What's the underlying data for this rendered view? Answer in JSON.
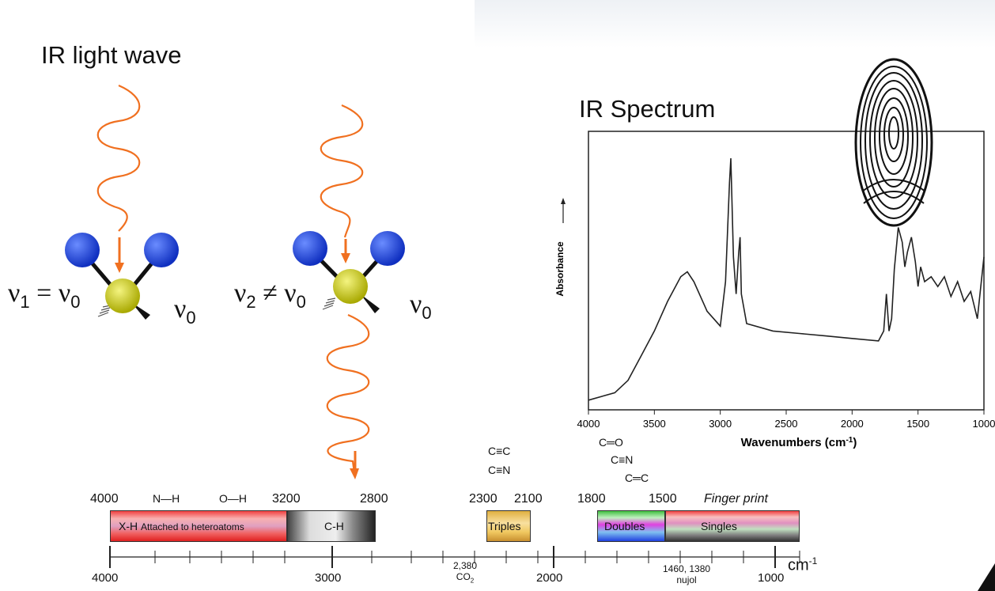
{
  "left": {
    "title": "IR light wave",
    "eq1_lhs": "ν",
    "eq1_sub": "1",
    "eq1_op": " = ",
    "eq1_rhs": "ν",
    "eq1_rhs_sub": "0",
    "nu0_a": "ν",
    "nu0_a_sub": "0",
    "eq2_lhs": "ν",
    "eq2_sub": "2",
    "eq2_op": " ≠ ",
    "eq2_rhs": "ν",
    "eq2_rhs_sub": "0",
    "nu0_b": "ν",
    "nu0_b_sub": "0",
    "colors": {
      "wave": "#f07020",
      "atom_outer": "#1f3fd8",
      "atom_center": "#c8c800"
    }
  },
  "spectrum": {
    "title": "IR Spectrum",
    "ylabel": "Absorbance",
    "xlabel": "Wavenumbers (cm",
    "xlabel_sup": "-1",
    "xlabel_end": ")",
    "x_ticks": [
      "4000",
      "3500",
      "3000",
      "2500",
      "2000",
      "1500",
      "1000"
    ],
    "icon": "fingerprint-icon"
  },
  "chart_data": {
    "type": "line",
    "title": "IR Spectrum",
    "xlabel": "Wavenumbers (cm-1)",
    "ylabel": "Absorbance",
    "xlim": [
      4000,
      1000
    ],
    "x_reversed": true,
    "series": [
      {
        "x": [
          4000,
          3800,
          3700,
          3600,
          3500,
          3400,
          3300,
          3250,
          3200,
          3100,
          3000,
          2960,
          2930,
          2920,
          2900,
          2880,
          2860,
          2850,
          2840,
          2800,
          2600,
          2400,
          2200,
          2000,
          1800,
          1760,
          1740,
          1720,
          1700,
          1680,
          1650,
          1620,
          1600,
          1580,
          1550,
          1520,
          1500,
          1480,
          1450,
          1400,
          1350,
          1300,
          1250,
          1200,
          1150,
          1100,
          1050,
          1000
        ],
        "y": [
          0.02,
          0.05,
          0.1,
          0.2,
          0.3,
          0.42,
          0.52,
          0.54,
          0.5,
          0.38,
          0.32,
          0.5,
          0.9,
          1.0,
          0.6,
          0.45,
          0.62,
          0.68,
          0.45,
          0.33,
          0.3,
          0.29,
          0.28,
          0.27,
          0.26,
          0.3,
          0.45,
          0.3,
          0.35,
          0.55,
          0.72,
          0.66,
          0.56,
          0.62,
          0.68,
          0.58,
          0.48,
          0.56,
          0.5,
          0.52,
          0.48,
          0.52,
          0.44,
          0.5,
          0.42,
          0.46,
          0.35,
          0.6
        ]
      }
    ]
  },
  "bonds": {
    "triple1": "C≡C",
    "triple2": "C≡N",
    "double1": "C═O",
    "double2": "C≡N",
    "double3": "C═C",
    "nh": "N—H",
    "oh": "O—H"
  },
  "scale_top": {
    "labels": [
      "4000",
      "3200",
      "2800",
      "2300",
      "2100",
      "1800",
      "1500"
    ],
    "fingerprint": "Finger print"
  },
  "regions": {
    "xh": "X-H",
    "xh_desc": "Attached to heteroatoms",
    "ch": "C-H",
    "triples": "Triples",
    "doubles": "Doubles",
    "singles": "Singles"
  },
  "scale_bottom": {
    "labels": [
      "4000",
      "3000",
      "2000",
      "1000"
    ],
    "co2_value": "2,380",
    "co2_label": "CO",
    "co2_sub": "2",
    "nujol_value": "1460, 1380",
    "nujol_label": "nujol",
    "unit": "cm",
    "unit_sup": "-1"
  }
}
